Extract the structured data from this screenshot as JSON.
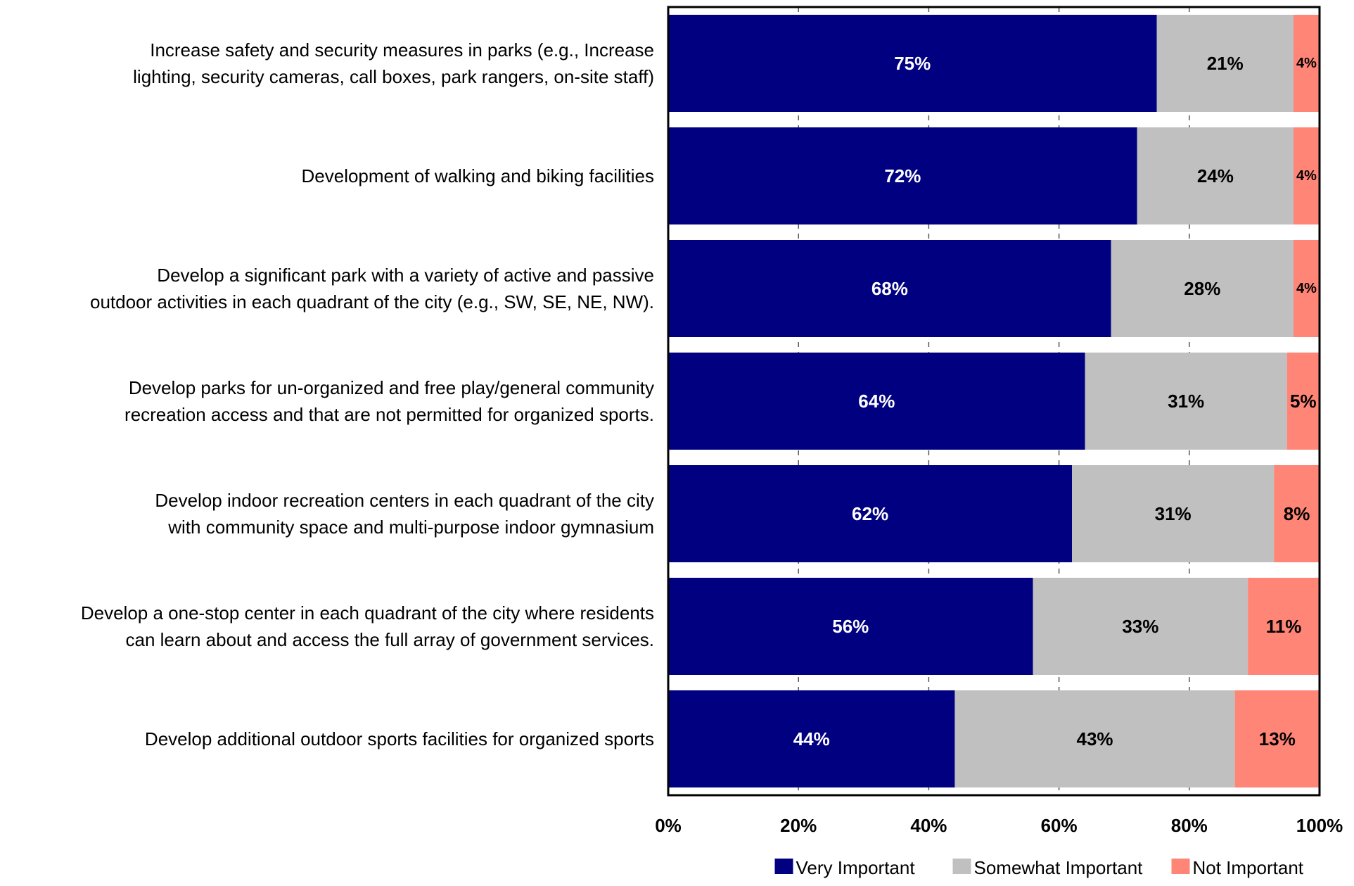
{
  "chart_data": {
    "type": "bar",
    "orientation": "horizontal",
    "stacked": true,
    "title": "",
    "xlabel": "",
    "ylabel": "",
    "xlim": [
      0,
      100
    ],
    "xticks": [
      0,
      20,
      40,
      60,
      80,
      100
    ],
    "xtick_labels": [
      "0%",
      "20%",
      "40%",
      "60%",
      "80%",
      "100%"
    ],
    "grid": "vertical dashed",
    "legend_position": "bottom-right",
    "categories": [
      [
        "Increase safety and security measures in parks (e.g., Increase",
        "lighting, security cameras, call boxes, park rangers, on-site staff)"
      ],
      [
        "Development of walking and biking facilities"
      ],
      [
        "Develop a significant park with a variety of active and passive",
        "outdoor activities in each quadrant of the city (e.g., SW, SE, NE, NW)."
      ],
      [
        "Develop parks for un-organized and free play/general community",
        "recreation access and that are not permitted for organized sports."
      ],
      [
        "Develop indoor recreation centers in each quadrant of the city",
        "with community space and multi-purpose indoor gymnasium"
      ],
      [
        "Develop a one-stop center in each quadrant of the city where residents",
        "can learn about and access the full array of government services."
      ],
      [
        "Develop additional outdoor sports facilities for organized sports"
      ]
    ],
    "series": [
      {
        "name": "Very Important",
        "color": "#000080",
        "label_color": "#ffffff",
        "values": [
          75,
          72,
          68,
          64,
          62,
          56,
          44
        ],
        "labels": [
          "75%",
          "72%",
          "68%",
          "64%",
          "62%",
          "56%",
          "44%"
        ]
      },
      {
        "name": "Somewhat Important",
        "color": "#c0c0c0",
        "label_color": "#000000",
        "values": [
          21,
          24,
          28,
          31,
          31,
          33,
          43
        ],
        "labels": [
          "21%",
          "24%",
          "28%",
          "31%",
          "31%",
          "33%",
          "43%"
        ]
      },
      {
        "name": "Not Important",
        "color": "#ff8577",
        "label_color": "#000000",
        "values": [
          4,
          4,
          4,
          5,
          8,
          11,
          13
        ],
        "labels": [
          "4%",
          "4%",
          "4%",
          "5%",
          "8%",
          "11%",
          "13%"
        ]
      }
    ]
  }
}
